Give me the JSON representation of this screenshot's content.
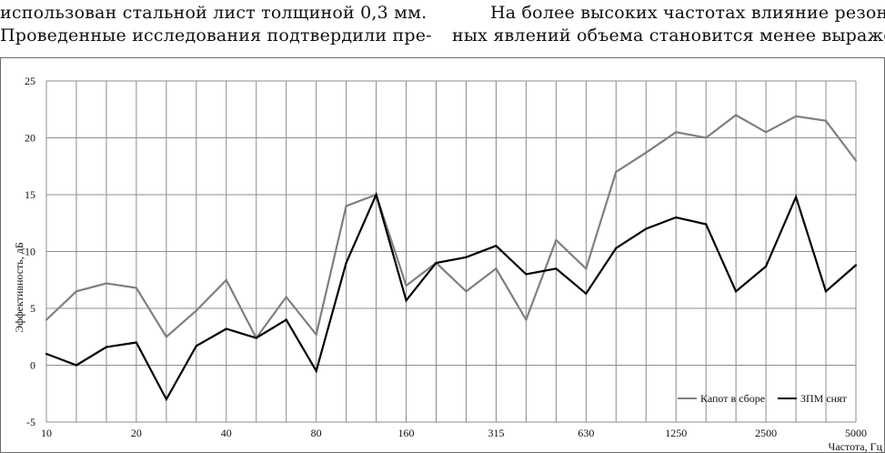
{
  "text": {
    "left_line1": "использован стальной лист толщиной 0,3 мм.",
    "left_line2": "Проведенные исследования подтвердили пре-",
    "right_line1": "На более высоких частотах влияние резонанс-",
    "right_line2": "ных явлений объема становится менее выражен-"
  },
  "colors": {
    "series_gray": "#7f7f7f",
    "series_black": "#000000",
    "grid": "#8c8c8c",
    "frame": "#6b6b6b"
  },
  "chart_data": {
    "type": "line",
    "title": "",
    "xlabel": "Частота, Гц",
    "ylabel": "Эффективность, дБ",
    "ylim": [
      -5,
      25
    ],
    "yticks": [
      -5,
      0,
      5,
      10,
      15,
      20,
      25
    ],
    "grid": true,
    "legend_position": "bottom-right",
    "categories": [
      "10",
      "12.5",
      "16",
      "20",
      "25",
      "31.5",
      "40",
      "50",
      "63",
      "80",
      "100",
      "125",
      "160",
      "200",
      "250",
      "315",
      "400",
      "500",
      "630",
      "800",
      "1000",
      "1250",
      "1600",
      "2000",
      "2500",
      "3150",
      "4000",
      "5000"
    ],
    "x_tick_labels": [
      "10",
      "",
      "",
      "20",
      "",
      "",
      "40",
      "",
      "",
      "80",
      "",
      "",
      "160",
      "",
      "",
      "315",
      "",
      "",
      "630",
      "",
      "",
      "1250",
      "",
      "",
      "2500",
      "",
      "",
      "5000"
    ],
    "series": [
      {
        "name": "Капот в сборе",
        "color": "#7f7f7f",
        "values": [
          4.0,
          6.5,
          7.2,
          6.8,
          2.5,
          4.8,
          7.5,
          2.4,
          6.0,
          2.7,
          14.0,
          15.0,
          7.0,
          9.0,
          6.5,
          8.5,
          4.0,
          11.0,
          8.5,
          17.0,
          18.7,
          20.5,
          20.0,
          22.0,
          20.5,
          21.9,
          21.5,
          18.0
        ]
      },
      {
        "name": "ЗПМ снят",
        "color": "#000000",
        "values": [
          1.0,
          0.0,
          1.6,
          2.0,
          -3.0,
          1.7,
          3.2,
          2.4,
          4.0,
          -0.5,
          9.0,
          15.0,
          5.7,
          9.0,
          9.5,
          10.5,
          8.0,
          8.5,
          6.3,
          10.3,
          12.0,
          13.0,
          12.4,
          6.5,
          8.7,
          14.8,
          6.5,
          8.8
        ]
      }
    ]
  }
}
